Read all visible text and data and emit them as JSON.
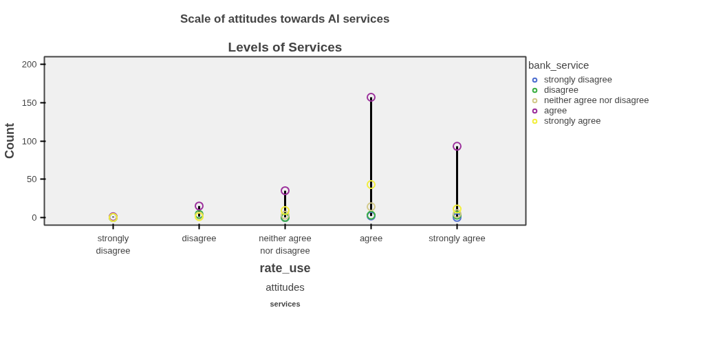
{
  "chart_data": {
    "type": "scatter",
    "title": "Scale of attitudes towards AI services",
    "subtitle": "Levels of Services",
    "xlabel": "rate_use",
    "ylabel": "Count",
    "legend_title": "bank_service",
    "annotations": [
      "attitudes",
      "services"
    ],
    "categories": [
      "strongly disagree",
      "disagree",
      "neither agree nor disagree",
      "agree",
      "strongly agree"
    ],
    "series": [
      {
        "name": "strongly disagree",
        "color": "#4f6fd0",
        "values": [
          0,
          null,
          0,
          2,
          0
        ]
      },
      {
        "name": "disagree",
        "color": "#3cb043",
        "values": [
          0,
          4,
          0,
          3,
          3
        ]
      },
      {
        "name": "neither agree nor disagree",
        "color": "#d2c98a",
        "values": [
          0,
          2,
          3,
          14,
          5
        ]
      },
      {
        "name": "agree",
        "color": "#9b2f9b",
        "values": [
          1,
          15,
          35,
          157,
          93
        ]
      },
      {
        "name": "strongly agree",
        "color": "#f2ef3c",
        "values": [
          0,
          1,
          9,
          43,
          11
        ]
      }
    ],
    "ylim": [
      -10,
      210
    ],
    "yticks": [
      0,
      50,
      100,
      150,
      200
    ],
    "legend": "right",
    "marker": "circle"
  }
}
